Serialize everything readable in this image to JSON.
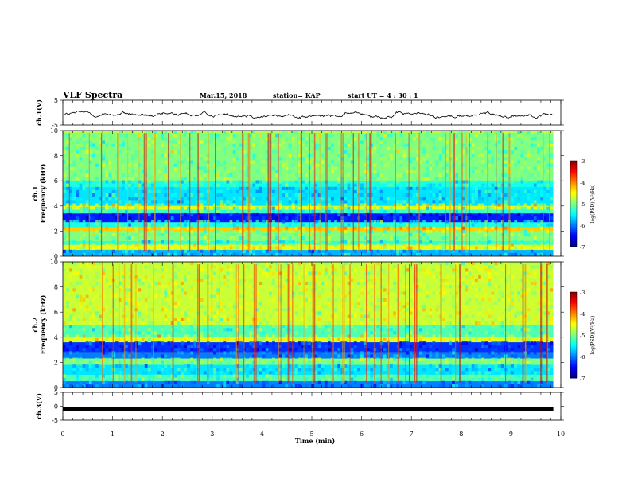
{
  "header": {
    "title": "VLF Spectra",
    "date": "Mar.15, 2018",
    "station": "station= KAP",
    "start": "start  UT =   4 : 30 : 1"
  },
  "chart_data": [
    {
      "type": "line",
      "panel": "ch1-waveform",
      "ylabel": "ch.1(V)",
      "ylim": [
        -5,
        5
      ],
      "yticks": [
        "5",
        "-5"
      ],
      "x_range": [
        0,
        9.85
      ],
      "y_center": -1,
      "y_amplitude": 1.5
    },
    {
      "type": "heatmap",
      "panel": "ch1-spectrogram",
      "ylabel": "ch.1\nFrequency (kHz)",
      "ylim": [
        0,
        10
      ],
      "yticks": [
        "0",
        "2",
        "4",
        "6",
        "8",
        "10"
      ],
      "x_range": [
        0,
        9.85
      ],
      "bands": [
        {
          "f0": 9.8,
          "f1": 10.0,
          "level": -4.8
        },
        {
          "f0": 6.0,
          "f1": 9.8,
          "level": -5.0
        },
        {
          "f0": 5.5,
          "f1": 6.0,
          "level": -5.4
        },
        {
          "f0": 4.0,
          "f1": 5.5,
          "level": -5.6
        },
        {
          "f0": 3.7,
          "f1": 4.0,
          "level": -4.6
        },
        {
          "f0": 3.4,
          "f1": 3.7,
          "level": -5.3
        },
        {
          "f0": 2.7,
          "f1": 3.4,
          "level": -6.4
        },
        {
          "f0": 2.3,
          "f1": 2.7,
          "level": -5.4
        },
        {
          "f0": 2.0,
          "f1": 2.3,
          "level": -4.3
        },
        {
          "f0": 1.2,
          "f1": 2.0,
          "level": -5.0
        },
        {
          "f0": 0.9,
          "f1": 1.2,
          "level": -5.3
        },
        {
          "f0": 0.5,
          "f1": 0.9,
          "level": -4.6
        },
        {
          "f0": 0.0,
          "f1": 0.5,
          "level": -5.8
        }
      ],
      "colorbar": {
        "label": "log(PSD)(V²/Hz)",
        "range": [
          -7,
          -3
        ],
        "ticks": [
          "-3",
          "-4",
          "-5",
          "-6",
          "-7"
        ]
      }
    },
    {
      "type": "heatmap",
      "panel": "ch2-spectrogram",
      "ylabel": "ch.2\nFrequency (kHz)",
      "ylim": [
        0,
        10
      ],
      "yticks": [
        "0",
        "2",
        "4",
        "6",
        "8",
        "10"
      ],
      "x_range": [
        0,
        9.85
      ],
      "bands": [
        {
          "f0": 9.8,
          "f1": 10.0,
          "level": -4.8
        },
        {
          "f0": 5.0,
          "f1": 9.8,
          "level": -4.7
        },
        {
          "f0": 4.0,
          "f1": 5.0,
          "level": -5.2
        },
        {
          "f0": 3.6,
          "f1": 4.0,
          "level": -4.6
        },
        {
          "f0": 2.8,
          "f1": 3.6,
          "level": -6.3
        },
        {
          "f0": 2.3,
          "f1": 2.8,
          "level": -6.0
        },
        {
          "f0": 1.8,
          "f1": 2.3,
          "level": -5.0
        },
        {
          "f0": 1.0,
          "f1": 1.8,
          "level": -5.6
        },
        {
          "f0": 0.5,
          "f1": 1.0,
          "level": -5.2
        },
        {
          "f0": 0.0,
          "f1": 0.5,
          "level": -6.0
        }
      ],
      "colorbar": {
        "label": "log(PSD)(V²/Hz)",
        "range": [
          -7,
          -3
        ],
        "ticks": [
          "-3",
          "-4",
          "-5",
          "-6",
          "-7"
        ]
      }
    },
    {
      "type": "line",
      "panel": "ch3-waveform",
      "ylabel": "ch.3(V)",
      "ylim": [
        -5,
        5
      ],
      "yticks": [
        "5",
        "0",
        "-5"
      ],
      "x_range": [
        0,
        9.85
      ],
      "y_center": -1,
      "y_amplitude": 0
    }
  ],
  "x_axis": {
    "label": "Time (min)",
    "ticks": [
      "0",
      "1",
      "2",
      "3",
      "4",
      "5",
      "6",
      "7",
      "8",
      "9",
      "10"
    ],
    "range": [
      0,
      10
    ]
  }
}
